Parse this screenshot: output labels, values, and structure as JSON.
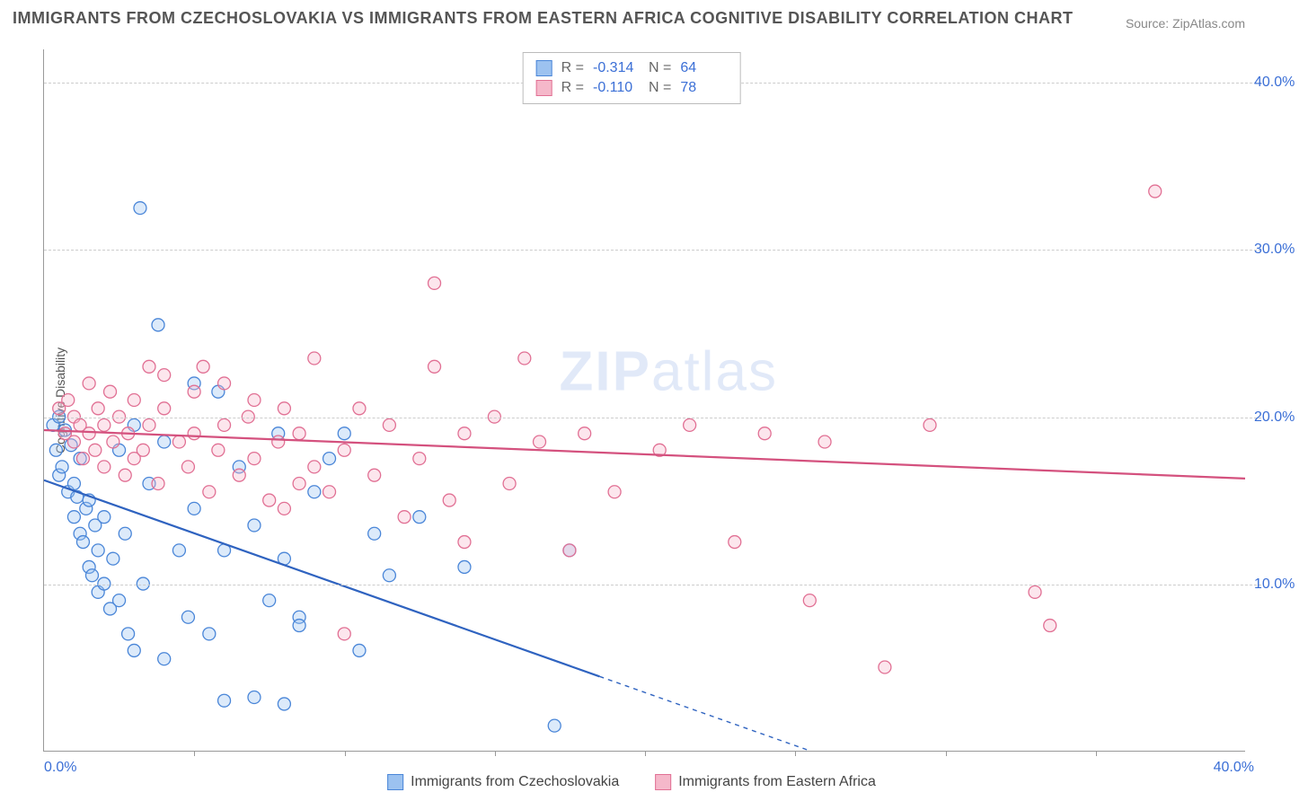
{
  "title": "IMMIGRANTS FROM CZECHOSLOVAKIA VS IMMIGRANTS FROM EASTERN AFRICA COGNITIVE DISABILITY CORRELATION CHART",
  "source": "Source: ZipAtlas.com",
  "ylabel": "Cognitive Disability",
  "watermark_bold": "ZIP",
  "watermark_light": "atlas",
  "chart": {
    "type": "scatter",
    "xlim": [
      0,
      40
    ],
    "ylim": [
      0,
      42
    ],
    "yticks": [
      10,
      20,
      30,
      40
    ],
    "ytick_labels": [
      "10.0%",
      "20.0%",
      "30.0%",
      "40.0%"
    ],
    "xtick_min_label": "0.0%",
    "xtick_max_label": "40.0%",
    "xtick_positions_pct": [
      12.5,
      25,
      37.5,
      50,
      62.5,
      75,
      87.5
    ],
    "grid_color": "#cccccc",
    "background_color": "#ffffff",
    "axis_color": "#999999",
    "tick_label_color": "#3b6fd6",
    "marker_radius": 7,
    "marker_stroke_width": 1.3,
    "marker_fill_opacity": 0.35,
    "trend_line_width": 2.2
  },
  "series": [
    {
      "name": "Immigrants from Czechoslovakia",
      "fill": "#9cc2f0",
      "stroke": "#4a86d8",
      "trend_color": "#2f63c0",
      "R": "-0.314",
      "N": "64",
      "trend": {
        "x1": 0,
        "y1": 16.2,
        "x2": 25.5,
        "y2": 0,
        "dashed_after_x": 18.5
      },
      "points": [
        [
          0.3,
          19.5
        ],
        [
          0.4,
          18.0
        ],
        [
          0.5,
          20.0
        ],
        [
          0.5,
          16.5
        ],
        [
          0.6,
          17.0
        ],
        [
          0.7,
          19.2
        ],
        [
          0.8,
          15.5
        ],
        [
          0.9,
          18.3
        ],
        [
          1.0,
          14.0
        ],
        [
          1.0,
          16.0
        ],
        [
          1.1,
          15.2
        ],
        [
          1.2,
          13.0
        ],
        [
          1.2,
          17.5
        ],
        [
          1.3,
          12.5
        ],
        [
          1.4,
          14.5
        ],
        [
          1.5,
          11.0
        ],
        [
          1.5,
          15.0
        ],
        [
          1.6,
          10.5
        ],
        [
          1.7,
          13.5
        ],
        [
          1.8,
          12.0
        ],
        [
          1.8,
          9.5
        ],
        [
          2.0,
          10.0
        ],
        [
          2.0,
          14.0
        ],
        [
          2.2,
          8.5
        ],
        [
          2.3,
          11.5
        ],
        [
          2.5,
          9.0
        ],
        [
          2.5,
          18.0
        ],
        [
          2.7,
          13.0
        ],
        [
          2.8,
          7.0
        ],
        [
          3.0,
          6.0
        ],
        [
          3.0,
          19.5
        ],
        [
          3.2,
          32.5
        ],
        [
          3.3,
          10.0
        ],
        [
          3.5,
          16.0
        ],
        [
          3.8,
          25.5
        ],
        [
          4.0,
          18.5
        ],
        [
          4.0,
          5.5
        ],
        [
          4.5,
          12.0
        ],
        [
          4.8,
          8.0
        ],
        [
          5.0,
          22.0
        ],
        [
          5.0,
          14.5
        ],
        [
          5.5,
          7.0
        ],
        [
          5.8,
          21.5
        ],
        [
          6.0,
          12.0
        ],
        [
          6.0,
          3.0
        ],
        [
          6.5,
          17.0
        ],
        [
          7.0,
          13.5
        ],
        [
          7.0,
          3.2
        ],
        [
          7.5,
          9.0
        ],
        [
          7.8,
          19.0
        ],
        [
          8.0,
          2.8
        ],
        [
          8.0,
          11.5
        ],
        [
          8.5,
          8.0
        ],
        [
          8.5,
          7.5
        ],
        [
          9.0,
          15.5
        ],
        [
          9.5,
          17.5
        ],
        [
          10.0,
          19.0
        ],
        [
          10.5,
          6.0
        ],
        [
          11.0,
          13.0
        ],
        [
          11.5,
          10.5
        ],
        [
          12.5,
          14.0
        ],
        [
          14.0,
          11.0
        ],
        [
          17.0,
          1.5
        ],
        [
          17.5,
          12.0
        ]
      ]
    },
    {
      "name": "Immigrants from Eastern Africa",
      "fill": "#f5b8ca",
      "stroke": "#e17094",
      "trend_color": "#d4517e",
      "R": "-0.110",
      "N": "78",
      "trend": {
        "x1": 0,
        "y1": 19.2,
        "x2": 40,
        "y2": 16.3,
        "dashed_after_x": 40
      },
      "points": [
        [
          0.5,
          20.5
        ],
        [
          0.7,
          19.0
        ],
        [
          0.8,
          21.0
        ],
        [
          1.0,
          18.5
        ],
        [
          1.0,
          20.0
        ],
        [
          1.2,
          19.5
        ],
        [
          1.3,
          17.5
        ],
        [
          1.5,
          19.0
        ],
        [
          1.5,
          22.0
        ],
        [
          1.7,
          18.0
        ],
        [
          1.8,
          20.5
        ],
        [
          2.0,
          17.0
        ],
        [
          2.0,
          19.5
        ],
        [
          2.2,
          21.5
        ],
        [
          2.3,
          18.5
        ],
        [
          2.5,
          20.0
        ],
        [
          2.7,
          16.5
        ],
        [
          2.8,
          19.0
        ],
        [
          3.0,
          17.5
        ],
        [
          3.0,
          21.0
        ],
        [
          3.3,
          18.0
        ],
        [
          3.5,
          23.0
        ],
        [
          3.5,
          19.5
        ],
        [
          3.8,
          16.0
        ],
        [
          4.0,
          20.5
        ],
        [
          4.0,
          22.5
        ],
        [
          4.5,
          18.5
        ],
        [
          4.8,
          17.0
        ],
        [
          5.0,
          19.0
        ],
        [
          5.0,
          21.5
        ],
        [
          5.3,
          23.0
        ],
        [
          5.5,
          15.5
        ],
        [
          5.8,
          18.0
        ],
        [
          6.0,
          22.0
        ],
        [
          6.0,
          19.5
        ],
        [
          6.5,
          16.5
        ],
        [
          6.8,
          20.0
        ],
        [
          7.0,
          17.5
        ],
        [
          7.0,
          21.0
        ],
        [
          7.5,
          15.0
        ],
        [
          7.8,
          18.5
        ],
        [
          8.0,
          14.5
        ],
        [
          8.0,
          20.5
        ],
        [
          8.5,
          16.0
        ],
        [
          8.5,
          19.0
        ],
        [
          9.0,
          23.5
        ],
        [
          9.0,
          17.0
        ],
        [
          9.5,
          15.5
        ],
        [
          10.0,
          18.0
        ],
        [
          10.0,
          7.0
        ],
        [
          10.5,
          20.5
        ],
        [
          11.0,
          16.5
        ],
        [
          11.5,
          19.5
        ],
        [
          12.0,
          14.0
        ],
        [
          12.5,
          17.5
        ],
        [
          13.0,
          23.0
        ],
        [
          13.0,
          28.0
        ],
        [
          13.5,
          15.0
        ],
        [
          14.0,
          19.0
        ],
        [
          14.0,
          12.5
        ],
        [
          15.0,
          20.0
        ],
        [
          15.5,
          16.0
        ],
        [
          16.0,
          23.5
        ],
        [
          16.5,
          18.5
        ],
        [
          17.5,
          12.0
        ],
        [
          18.0,
          19.0
        ],
        [
          19.0,
          15.5
        ],
        [
          20.5,
          18.0
        ],
        [
          21.5,
          19.5
        ],
        [
          23.0,
          12.5
        ],
        [
          24.0,
          19.0
        ],
        [
          25.5,
          9.0
        ],
        [
          26.0,
          18.5
        ],
        [
          28.0,
          5.0
        ],
        [
          29.5,
          19.5
        ],
        [
          33.0,
          9.5
        ],
        [
          33.5,
          7.5
        ],
        [
          37.0,
          33.5
        ]
      ]
    }
  ]
}
